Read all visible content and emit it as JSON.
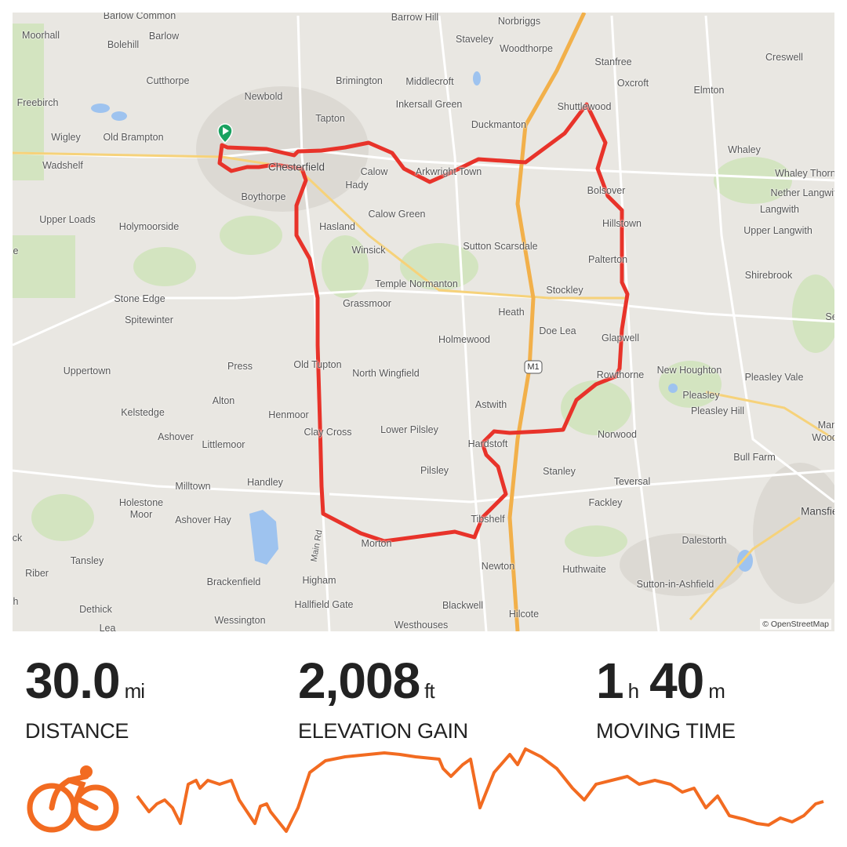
{
  "map": {
    "attribution": "© OpenStreetMap",
    "route_color": "#e8332a",
    "start_marker_color": "#1aa260",
    "road_label": "Main Rd",
    "motorway_label": "M1",
    "places": [
      "Barlow Common",
      "Barrow Hill",
      "Norbriggs",
      "Moorhall",
      "Bolehill",
      "Barlow",
      "Staveley",
      "Woodthorpe",
      "Creswell",
      "Stanfree",
      "Oxcroft",
      "Brimington",
      "Middlecroft",
      "Cutthorpe",
      "Newbold",
      "Freebirch",
      "Inkersall Green",
      "Shuttlewood",
      "Elmton",
      "Tapton",
      "Duckmanton",
      "Wigley",
      "Old Brampton",
      "Whaley",
      "Wadshelf",
      "Chesterfield",
      "Calow",
      "Arkwright Town",
      "Whaley Thorns",
      "Hady",
      "Bolsover",
      "Nether Langwith",
      "Boythorpe",
      "Langwith",
      "Upper Loads",
      "Calow Green",
      "Holymoorside",
      "Hasland",
      "Hillstown",
      "Upper Langwith",
      "Winsick",
      "Sutton Scarsdale",
      "Palterton",
      "Shirebrook",
      "Temple Normanton",
      "Stockley",
      "Stone Edge",
      "Grassmoor",
      "Heath",
      "Spitewinter",
      "Doe Lea",
      "Glapwell",
      "Holmewood",
      "Uppertown",
      "Press",
      "Old Tupton",
      "North Wingfield",
      "New Houghton",
      "Rowthorne",
      "Pleasley",
      "Pleasley Vale",
      "Kelstedge",
      "Alton",
      "Astwith",
      "Pleasley Hill",
      "Ashover",
      "Henmoor",
      "Clay Cross",
      "Lower Pilsley",
      "Norwood",
      "Littlemoor",
      "Hardstoft",
      "Bull Farm",
      "Milltown",
      "Handley",
      "Pilsley",
      "Stanley",
      "Teversal",
      "Holestone",
      "Moor",
      "Fackley",
      "Ashover Hay",
      "Tibshelf",
      "Mansfield",
      "Morton",
      "Dalestorth",
      "Tansley",
      "Newton",
      "Huthwaite",
      "Riber",
      "Higham",
      "Brackenfield",
      "Sutton-in-Ashfield",
      "Dethick",
      "Hallfield Gate",
      "Blackwell",
      "Wessington",
      "Hilcote",
      "Westhouses",
      "Lea",
      "Mans",
      "Woodh",
      "Se",
      "ck",
      "h",
      "e"
    ]
  },
  "stats": {
    "distance": {
      "value": "30.0",
      "unit": "mi",
      "label": "DISTANCE"
    },
    "elevation": {
      "value": "2,008",
      "unit": "ft",
      "label": "ELEVATION GAIN"
    },
    "moving_time": {
      "hours": "1",
      "hours_unit": "h",
      "minutes": "40",
      "minutes_unit": "m",
      "label": "MOVING TIME"
    }
  },
  "activity": {
    "type_icon": "cycling-icon",
    "accent_color": "#f26b21"
  }
}
